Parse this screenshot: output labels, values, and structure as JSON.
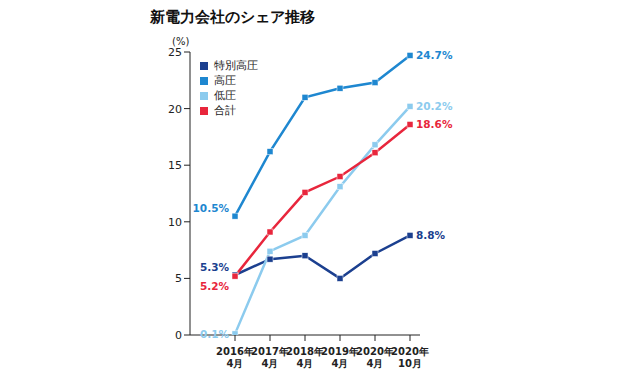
{
  "chart_data": {
    "type": "line",
    "title": "新電力会社のシェア推移",
    "y_label": "(%)",
    "categories": [
      "2016年\n4月",
      "2017年\n4月",
      "2018年\n4月",
      "2019年\n4月",
      "2020年\n4月",
      "2020年\n10月"
    ],
    "series": [
      {
        "name": "特別高圧",
        "color": "#1b3f8f",
        "marker": "square",
        "values": [
          5.3,
          6.7,
          7.0,
          5.0,
          7.2,
          8.8
        ],
        "value_labels": [
          "5.3%",
          null,
          null,
          null,
          null,
          "8.8%"
        ]
      },
      {
        "name": "高圧",
        "color": "#1e87d0",
        "marker": "square",
        "values": [
          10.5,
          16.2,
          21.0,
          21.8,
          22.3,
          24.7
        ],
        "value_labels": [
          "10.5%",
          null,
          null,
          null,
          null,
          "24.7%"
        ]
      },
      {
        "name": "低圧",
        "color": "#8ccbee",
        "marker": "square",
        "values": [
          0.1,
          7.4,
          8.8,
          13.1,
          16.8,
          20.2
        ],
        "value_labels": [
          "0.1%",
          null,
          null,
          null,
          null,
          "20.2%"
        ]
      },
      {
        "name": "合計",
        "color": "#e8263c",
        "marker": "square",
        "values": [
          5.2,
          9.1,
          12.6,
          14.0,
          16.1,
          18.6
        ],
        "value_labels": [
          "5.2%",
          null,
          null,
          null,
          null,
          "18.6%"
        ]
      }
    ],
    "ylim": [
      0,
      25
    ],
    "yticks": [
      0,
      5,
      10,
      15,
      20,
      25
    ],
    "grid": false,
    "legend": "upper left"
  }
}
